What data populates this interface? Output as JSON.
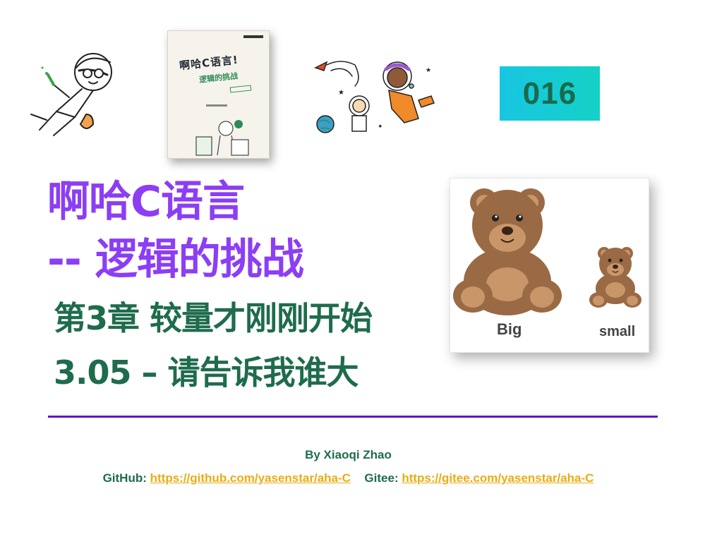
{
  "badge": {
    "number": "016"
  },
  "book": {
    "title": "啊哈C语言!",
    "subtitle": "逻辑的挑战"
  },
  "titles": {
    "line1": "啊哈C语言",
    "line2": "-- 逻辑的挑战",
    "line3": "第3章 较量才刚刚开始",
    "line4": "3.05 – 请告诉我谁大"
  },
  "bears": {
    "big_label": "Big",
    "small_label": "small"
  },
  "footer": {
    "byline": "By Xiaoqi Zhao",
    "github_label": "GitHub:",
    "github_url": "https://github.com/yasenstar/aha-C",
    "gitee_label": "Gitee:",
    "gitee_url": "https://gitee.com/yasenstar/aha-C"
  },
  "colors": {
    "title_purple": "#8c3ef4",
    "title_green": "#1e6c4c",
    "link_gold": "#e8ad14",
    "divider": "#5b17c9",
    "badge_cyan": "#18c6e2"
  }
}
